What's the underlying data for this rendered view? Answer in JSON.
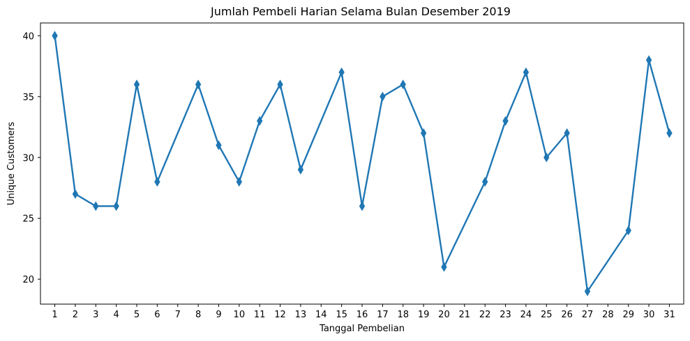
{
  "chart_data": {
    "type": "line",
    "title": "Jumlah Pembeli Harian Selama Bulan Desember 2019",
    "xlabel": "Tanggal Pembelian",
    "ylabel": "Unique Customers",
    "x_ticks": [
      "1",
      "2",
      "3",
      "4",
      "5",
      "6",
      "7",
      "8",
      "9",
      "10",
      "11",
      "12",
      "13",
      "14",
      "15",
      "16",
      "17",
      "18",
      "19",
      "20",
      "21",
      "22",
      "23",
      "24",
      "25",
      "26",
      "27",
      "28",
      "29",
      "30",
      "31"
    ],
    "y_ticks": [
      20,
      25,
      30,
      35,
      40
    ],
    "ylim": [
      17.95,
      41.05
    ],
    "marker": "thin-diamond",
    "grid": false,
    "series": [
      {
        "color": "#1f77b4",
        "x": [
          1,
          2,
          3,
          4,
          5,
          6,
          8,
          9,
          10,
          11,
          12,
          13,
          15,
          16,
          17,
          18,
          19,
          20,
          22,
          23,
          24,
          25,
          26,
          27,
          29,
          30,
          31
        ],
        "y": [
          40,
          27,
          26,
          26,
          36,
          28,
          36,
          31,
          28,
          33,
          36,
          29,
          37,
          26,
          35,
          36,
          32,
          21,
          28,
          33,
          37,
          30,
          32,
          19,
          24,
          38,
          32
        ]
      }
    ]
  }
}
